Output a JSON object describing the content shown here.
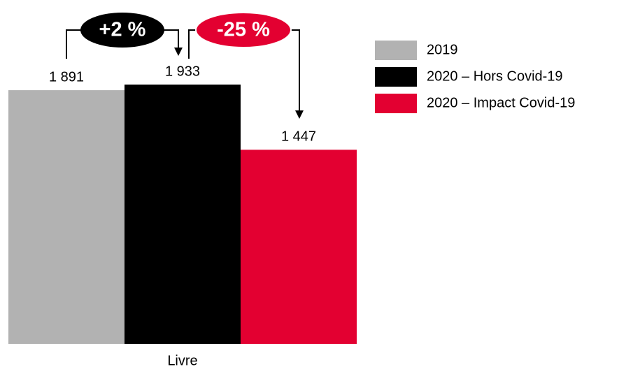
{
  "chart_data": {
    "type": "bar",
    "categories": [
      "Livre"
    ],
    "series": [
      {
        "name": "2019",
        "color": "#b2b2b2",
        "values": [
          1891
        ],
        "value_labels": [
          "1 891"
        ]
      },
      {
        "name": "2020 – Hors Covid-19",
        "color": "#000000",
        "values": [
          1933
        ],
        "value_labels": [
          "1 933"
        ]
      },
      {
        "name": "2020 – Impact Covid-19",
        "color": "#e30031",
        "values": [
          1447
        ],
        "value_labels": [
          "1 447"
        ]
      }
    ],
    "annotations": [
      "+2 %",
      "-25 %"
    ],
    "legend": "right"
  }
}
